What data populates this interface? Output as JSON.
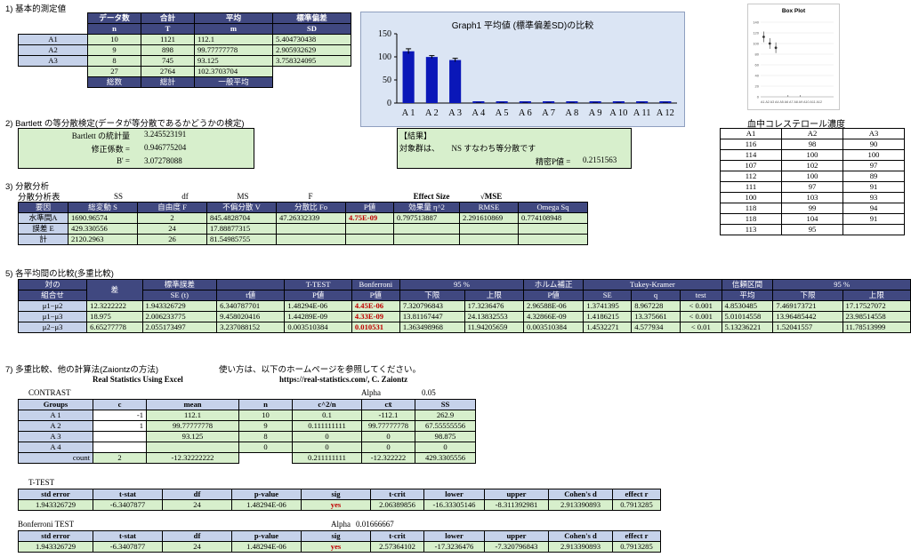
{
  "sections": {
    "s1": "1) 基本的測定値",
    "s2": "2) Bartlett の等分散検定(データが等分散であるかどうかの検定)",
    "s3": "3) 分散分析",
    "s5": "5) 各平均間の比較(多重比較)",
    "s7": "7) 多重比較、他の計算法(Zaiontzの方法)",
    "s7_note": "使い方は、以下のホームページを参照してください。"
  },
  "basic": {
    "headers": [
      [
        "データ数",
        "n"
      ],
      [
        "合計",
        "T"
      ],
      [
        "平均",
        "m"
      ],
      [
        "標準偏差",
        "SD"
      ]
    ],
    "rows": [
      {
        "label": "A1",
        "n": "10",
        "T": "1121",
        "m": "112.1",
        "sd": "5.404730438"
      },
      {
        "label": "A2",
        "n": "9",
        "T": "898",
        "m": "99.77777778",
        "sd": "2.905932629"
      },
      {
        "label": "A3",
        "n": "8",
        "T": "745",
        "m": "93.125",
        "sd": "3.758324095"
      }
    ],
    "total": {
      "n": "27",
      "T": "2764",
      "m": "102.3703704"
    },
    "footer": [
      "総数",
      "総計",
      "一般平均"
    ]
  },
  "graph1": {
    "title": "Graph1 平均値 (標準偏差SD)の比較",
    "yticks": [
      "0",
      "50",
      "100",
      "150"
    ],
    "categories": [
      "A 1",
      "A 2",
      "A 3",
      "A 4",
      "A 5",
      "A 6",
      "A 7",
      "A 8",
      "A 9",
      "A 10",
      "A 11",
      "A 12"
    ]
  },
  "boxplot": {
    "title": "Box Plot",
    "yticks": [
      "140",
      "120",
      "100",
      "80",
      "60",
      "40",
      "20",
      "0"
    ],
    "xlabels": "A1 A2 A3 A4 A5 A6 A7 A8 A9 A10 A11 A12"
  },
  "chol": {
    "title": "血中コレステロール濃度",
    "headers": [
      "A1",
      "A2",
      "A3"
    ],
    "rows": [
      [
        "116",
        "98",
        "90"
      ],
      [
        "114",
        "100",
        "100"
      ],
      [
        "107",
        "102",
        "97"
      ],
      [
        "112",
        "100",
        "89"
      ],
      [
        "111",
        "97",
        "91"
      ],
      [
        "100",
        "103",
        "93"
      ],
      [
        "118",
        "99",
        "94"
      ],
      [
        "118",
        "104",
        "91"
      ],
      [
        "113",
        "95",
        ""
      ]
    ]
  },
  "bartlett": {
    "labels": [
      "Bartlett の統計量",
      "修正係数 =",
      "B' ="
    ],
    "values": [
      "3.245523191",
      "0.946775204",
      "3.07278088"
    ],
    "result_title": "【結果】",
    "result_text": "対象群は、　　NS すなわち等分散です",
    "precise": "精密P値 =",
    "precise_val": "0.2151563"
  },
  "anova": {
    "table_title": "分散分析表",
    "top_headers": [
      "SS",
      "df",
      "MS",
      "F",
      "Effect Size",
      "√MSE"
    ],
    "headers": [
      "要因",
      "総変動 S",
      "自由度 F",
      "不偏分散 V",
      "分散比 Fo",
      "P値",
      "効果量 η^2",
      "RMSE",
      "Omega Sq"
    ],
    "rows": [
      [
        "水準間A",
        "1690.96574",
        "2",
        "845.4828704",
        "47.26332339",
        "4.75E-09",
        "0.797513887",
        "2.291610869",
        "0.774108948"
      ],
      [
        "誤差 E",
        "429.330556",
        "24",
        "17.88877315",
        "",
        "",
        "",
        "",
        ""
      ],
      [
        "計",
        "2120.2963",
        "26",
        "81.54985755",
        "",
        "",
        "",
        "",
        ""
      ]
    ]
  },
  "multi": {
    "h1": [
      "対の",
      "差",
      "標準誤差",
      "",
      "T-TEST",
      "Bonferroni",
      "95 %",
      "ホルム補正",
      "Tukey-Kramer",
      "信頼区間",
      "95 %"
    ],
    "h2": [
      "組合せ",
      "",
      "SE (t)",
      "t値",
      "P値",
      "P値",
      "下限",
      "上限",
      "P値",
      "SE",
      "q",
      "test",
      "平均",
      "下限",
      "上限"
    ],
    "rows": [
      [
        "μ1−μ2",
        "12.3222222",
        "1.943326729",
        "6.340787701",
        "1.48294E-06",
        "4.45E-06",
        "7.320796843",
        "17.3236476",
        "2.96588E-06",
        "1.3741395",
        "8.967228",
        "< 0.001",
        "4.8530485",
        "7.469173721",
        "17.17527072"
      ],
      [
        "μ1−μ3",
        "18.975",
        "2.006233775",
        "9.458020416",
        "1.44289E-09",
        "4.33E-09",
        "13.81167447",
        "24.13832553",
        "4.32866E-09",
        "1.4186215",
        "13.375661",
        "< 0.001",
        "5.01014558",
        "13.96485442",
        "23.98514558"
      ],
      [
        "μ2−μ3",
        "6.65277778",
        "2.055173497",
        "3.237088152",
        "0.003510384",
        "0.010531",
        "1.363498968",
        "11.94205659",
        "0.003510384",
        "1.4532271",
        "4.577934",
        "< 0.01",
        "5.13236221",
        "1.52041557",
        "11.78513999"
      ]
    ]
  },
  "zaiontz": {
    "source_left": "Real Statistics Using Excel",
    "source_right": "https://real-statistics.com/, C. Zaiontz",
    "contrast": "CONTRAST",
    "alpha_label": "Alpha",
    "alpha": "0.05",
    "headers": [
      "Groups",
      "c",
      "mean",
      "n",
      "c^2/n",
      "cx̄",
      "SS"
    ],
    "rows": [
      [
        "A 1",
        "-1",
        "112.1",
        "10",
        "0.1",
        "-112.1",
        "262.9"
      ],
      [
        "A 2",
        "1",
        "99.77777778",
        "9",
        "0.111111111",
        "99.77777778",
        "67.55555556"
      ],
      [
        "A 3",
        "",
        "93.125",
        "8",
        "0",
        "0",
        "98.875"
      ],
      [
        "A 4",
        "",
        "",
        "0",
        "0",
        "0",
        "0"
      ]
    ],
    "count_row": [
      "count",
      "2",
      "-12.32222222",
      "",
      "0.211111111",
      "-12.322222",
      "429.3305556"
    ],
    "ttest_title": "T-TEST",
    "t_headers": [
      "std error",
      "t-stat",
      "df",
      "p-value",
      "sig",
      "t-crit",
      "lower",
      "upper",
      "Cohen's d",
      "effect r"
    ],
    "t_row": [
      "1.943326729",
      "-6.3407877",
      "24",
      "1.48294E-06",
      "yes",
      "2.06389856",
      "-16.33305146",
      "-8.311392981",
      "2.913390893",
      "0.7913285"
    ],
    "bonf_title": "Bonferroni TEST",
    "bonf_alpha_label": "Alpha",
    "bonf_alpha": "0.01666667",
    "b_row": [
      "1.943326729",
      "-6.3407877",
      "24",
      "1.48294E-06",
      "yes",
      "2.57364102",
      "-17.3236476",
      "-7.320796843",
      "2.913390893",
      "0.7913285"
    ]
  },
  "chart_data": [
    {
      "type": "bar",
      "title": "Graph1 平均値 (標準偏差SD)の比較",
      "categories": [
        "A 1",
        "A 2",
        "A 3",
        "A 4",
        "A 5",
        "A 6",
        "A 7",
        "A 8",
        "A 9",
        "A 10",
        "A 11",
        "A 12"
      ],
      "values": [
        112.1,
        99.78,
        93.13,
        0,
        0,
        0,
        0,
        0,
        0,
        0,
        0,
        0
      ],
      "errors": [
        5.4,
        2.91,
        3.76,
        0,
        0,
        0,
        0,
        0,
        0,
        0,
        0,
        0
      ],
      "ylim": [
        0,
        150
      ],
      "color": "#0a17b8"
    },
    {
      "type": "scatter",
      "title": "Box Plot",
      "ylim": [
        0,
        140
      ],
      "medians": [
        112.5,
        100,
        92
      ]
    }
  ]
}
